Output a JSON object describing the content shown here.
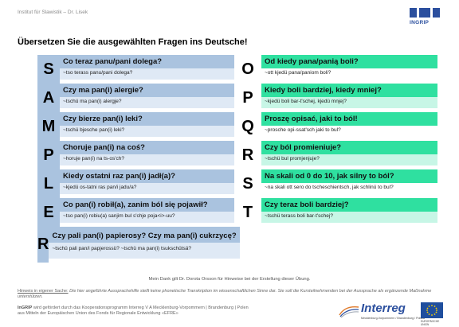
{
  "header": {
    "institute": "Institut für Slawistik – Dr. Lisek",
    "logo_text": "INGRIP"
  },
  "title": "Übersetzen Sie die ausgewählten Fragen ins Deutsche!",
  "sampler": [
    {
      "letter": "S",
      "question": "Co teraz panu/pani dolega?",
      "transcription": "~tso terass panu/pani dolega?"
    },
    {
      "letter": "A",
      "question": "Czy ma pan(i) alergie?",
      "transcription": "~tschü ma pan(i) alergje?"
    },
    {
      "letter": "M",
      "question": "Czy bierze pan(i) leki?",
      "transcription": "~tschü bjesche pan(i) leki?"
    },
    {
      "letter": "P",
      "question": "Choruje pan(i) na coś?",
      "transcription": "~horuje pan(i) na ts-os'ch?"
    },
    {
      "letter": "L",
      "question": "Kiedy ostatni raz pan(i) jadł(a)?",
      "transcription": "~kjedü os-tatni ras pan/i jadu/a?"
    },
    {
      "letter": "E",
      "question": "Co pan(i) robił(a), zanim ból się pojawił?",
      "transcription": "~tso pan(i) robiu(a) sanjim bul s'chje poja<i>-uu?"
    },
    {
      "letter": "R",
      "question": "Czy pali pan(i) papierosy? Czy ma pan(i) cukrzycę?",
      "transcription": "~tschü pali pan/i papjerossü? ~tschü ma pan(i) tsukschütsä?"
    }
  ],
  "opqrst": [
    {
      "letter": "O",
      "question": "Od kiedy pana/panią boli?",
      "transcription": "~ott kjedü pana/paniom boli?"
    },
    {
      "letter": "P",
      "question": "Kiedy boli bardziej, kiedy mniej?",
      "transcription": "~kjedü boli bar-t'schej, kjedü mnjej?"
    },
    {
      "letter": "Q",
      "question": "Proszę opisać, jaki to ból!",
      "transcription": "~prosche opi-ssat'sch jaki to bul?"
    },
    {
      "letter": "R",
      "question": "Czy ból promieniuje?",
      "transcription": "~tschü bul promjenjuje?"
    },
    {
      "letter": "S",
      "question": "Na skali od 0 do 10, jak silny to ból?",
      "transcription": "~na skali ott sero do tscheschientsch, jak schlinü to bul?"
    },
    {
      "letter": "T",
      "question": "Czy teraz boli bardziej?",
      "transcription": "~tschü terass boli bar-t'schej?"
    }
  ],
  "footer": {
    "thanks": "Mein Dank gilt Dr. Dorota Orsson für Hinweise bei der Erstellung dieser Übung.",
    "notice_label": "Hinweis in eigener Sache:",
    "notice_body": " Die hier angeführte Aussprachehilfe stellt keine phonetische Transkription im wissenschaftlichen Sinne dar. Sie soll die Kursteilnehmenden bei der Aussprache als ergänzende Maßnahme unterstützen.",
    "funding_org": "InGRIP",
    "funding_text": " wird gefördert durch das Kooperationsprogramm Interreg V A Mecklenburg-Vorpommern | Brandenburg | Polen aus Mitteln der Europäischen Union des Fonds für Regionale Entwicklung «EFRE»",
    "interreg_word": "Interreg",
    "interreg_sub": "Mecklenburg-Vorpommern / Brandenburg / Polska",
    "eu_sub": "EUROPÄISCHE UNION"
  },
  "colors": {
    "sampler_dark": "#aac3df",
    "sampler_light": "#dfe9f5",
    "opqrst_green": "#2fe0a0",
    "opqrst_light": "#c7f6e6",
    "brand_blue": "#2b4f9e"
  }
}
